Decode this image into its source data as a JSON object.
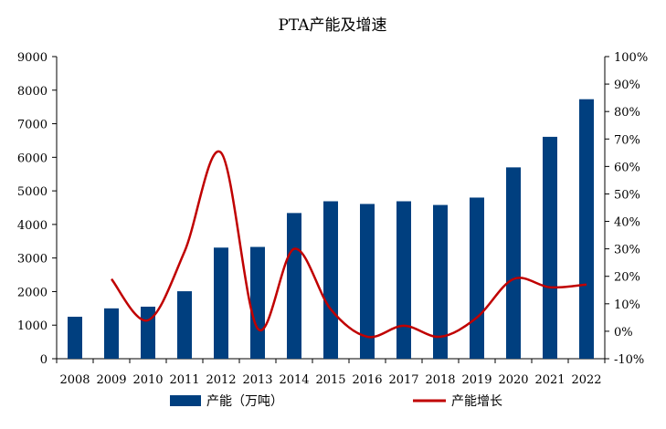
{
  "chart_data": {
    "type": "bar",
    "title": "PTA产能及增速",
    "categories": [
      "2008",
      "2009",
      "2010",
      "2011",
      "2012",
      "2013",
      "2014",
      "2015",
      "2016",
      "2017",
      "2018",
      "2019",
      "2020",
      "2021",
      "2022"
    ],
    "series": [
      {
        "name": "产能（万吨）",
        "type": "bar",
        "axis": "left",
        "color": "#003f7f",
        "values": [
          1250,
          1500,
          1550,
          2010,
          3310,
          3330,
          4340,
          4690,
          4610,
          4690,
          4580,
          4800,
          5700,
          6610,
          7730
        ]
      },
      {
        "name": "产能增长",
        "type": "line",
        "axis": "right",
        "color": "#c00000",
        "values": [
          null,
          0.19,
          0.04,
          0.29,
          0.65,
          0.01,
          0.3,
          0.08,
          -0.02,
          0.02,
          -0.02,
          0.05,
          0.19,
          0.16,
          0.17
        ]
      }
    ],
    "y_left": {
      "range": [
        0,
        9000
      ],
      "ticks": [
        "0",
        "1000",
        "2000",
        "3000",
        "4000",
        "5000",
        "6000",
        "7000",
        "8000",
        "9000"
      ]
    },
    "y_right": {
      "range": [
        -0.1,
        1.0
      ],
      "ticks": [
        "-10%",
        "0%",
        "10%",
        "20%",
        "30%",
        "40%",
        "50%",
        "60%",
        "70%",
        "80%",
        "90%",
        "100%"
      ]
    },
    "grid": false,
    "legend_position": "bottom"
  }
}
